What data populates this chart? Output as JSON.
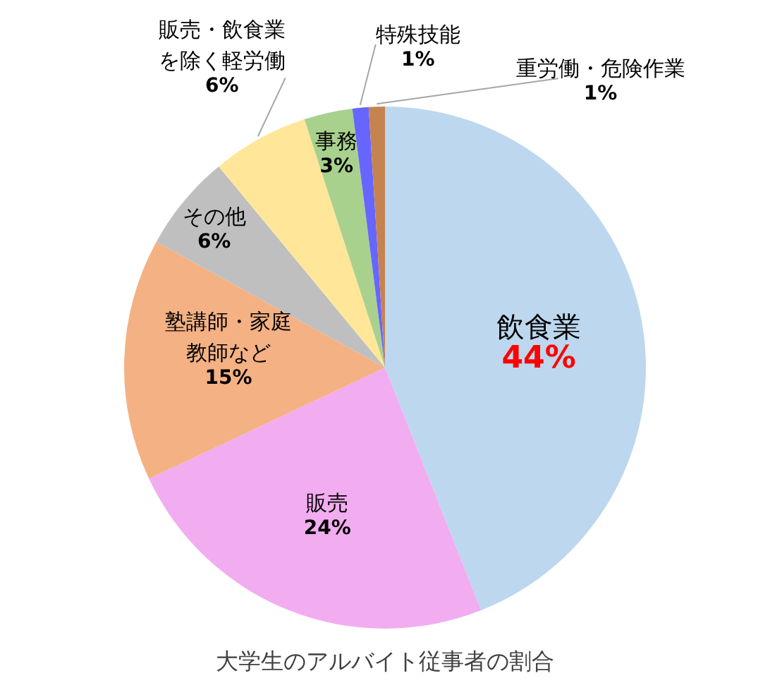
{
  "chart_data": {
    "type": "pie",
    "title": "大学生のアルバイト従事者の割合",
    "categories": [
      "飲食業",
      "販売",
      "塾講師・家庭教師など",
      "その他",
      "販売・飲食業を除く軽労働",
      "事務",
      "特殊技能",
      "重労働・危険作業"
    ],
    "values": [
      44,
      24,
      15,
      6,
      6,
      3,
      1,
      1
    ],
    "value_labels": [
      "44%",
      "24%",
      "15%",
      "6%",
      "6%",
      "3%",
      "1%",
      "1%"
    ],
    "colors": [
      "#bdd7ee",
      "#f2acf0",
      "#f4b183",
      "#bfbfbf",
      "#ffe699",
      "#a9d18e",
      "#6666ff",
      "#c5834f"
    ],
    "legend": false
  }
}
